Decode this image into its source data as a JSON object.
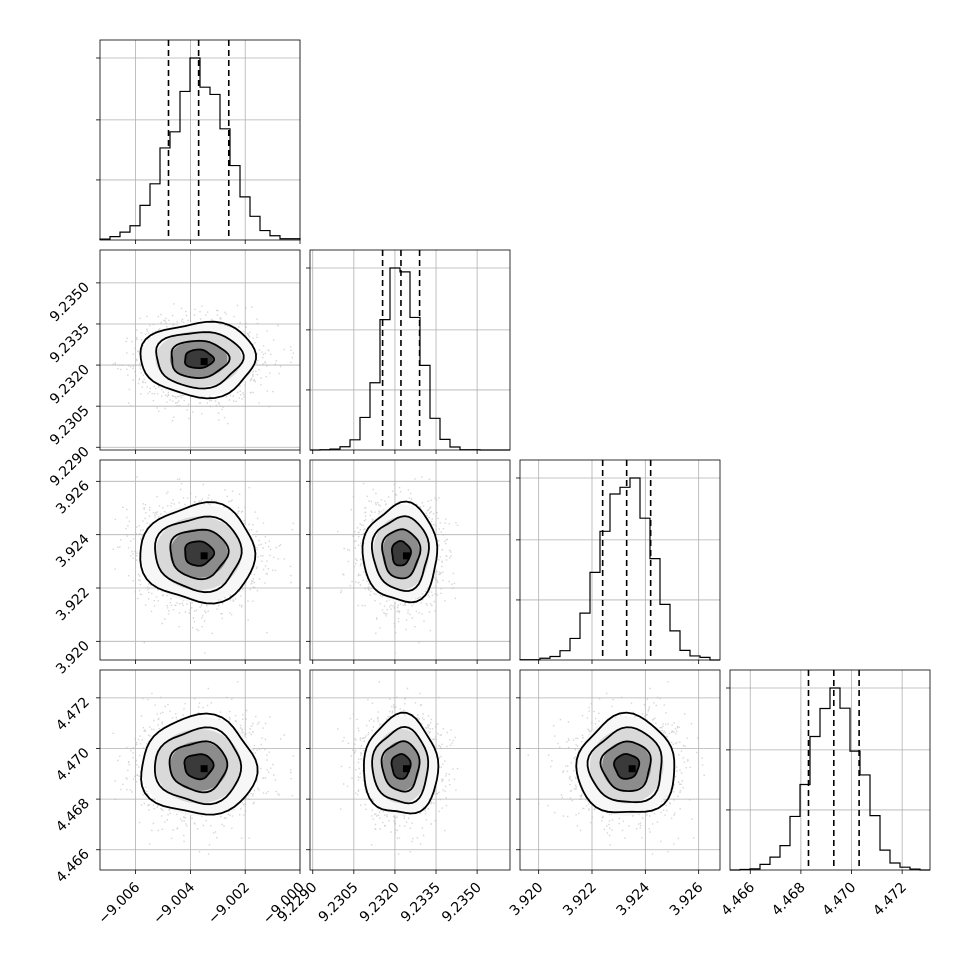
{
  "chart_data": {
    "type": "corner",
    "parameters": [
      {
        "mean": -9.0037,
        "sd": 0.00105,
        "q16": -9.0048,
        "q50": -9.0037,
        "q84": -9.0026,
        "range": [
          -9.0073,
          -9.0
        ],
        "ticks": [
          -9.006,
          -9.004,
          -9.002,
          -9.0
        ],
        "tick_labels": [
          "−9.006",
          "−9.004",
          "−9.002",
          "−9.000"
        ]
      },
      {
        "mean": 9.23222,
        "sd": 0.00068,
        "q16": 9.23155,
        "q50": 9.23222,
        "q84": 9.2329,
        "range": [
          9.2289,
          9.2362
        ],
        "ticks": [
          9.229,
          9.2305,
          9.232,
          9.2335,
          9.235
        ],
        "tick_labels": [
          "9.2290",
          "9.2305",
          "9.2320",
          "9.2335",
          "9.2350"
        ]
      },
      {
        "mean": 3.9233,
        "sd": 0.00092,
        "q16": 3.9224,
        "q50": 3.9233,
        "q84": 3.9242,
        "range": [
          3.9193,
          3.9268
        ],
        "ticks": [
          3.92,
          3.922,
          3.924,
          3.926
        ],
        "tick_labels": [
          "3.920",
          "3.922",
          "3.924",
          "3.926"
        ]
      },
      {
        "mean": 4.4693,
        "sd": 0.00098,
        "q16": 4.4683,
        "q50": 4.4693,
        "q84": 4.4703,
        "range": [
          4.4652,
          4.4731
        ],
        "ticks": [
          4.466,
          4.468,
          4.47,
          4.472
        ],
        "tick_labels": [
          "4.466",
          "4.468",
          "4.470",
          "4.472"
        ]
      }
    ],
    "histogram_bins": 20,
    "quantiles": [
      0.16,
      0.5,
      0.84
    ],
    "contour_levels_sigma": [
      0.5,
      1.0,
      1.5,
      2.0
    ],
    "grid": true
  }
}
